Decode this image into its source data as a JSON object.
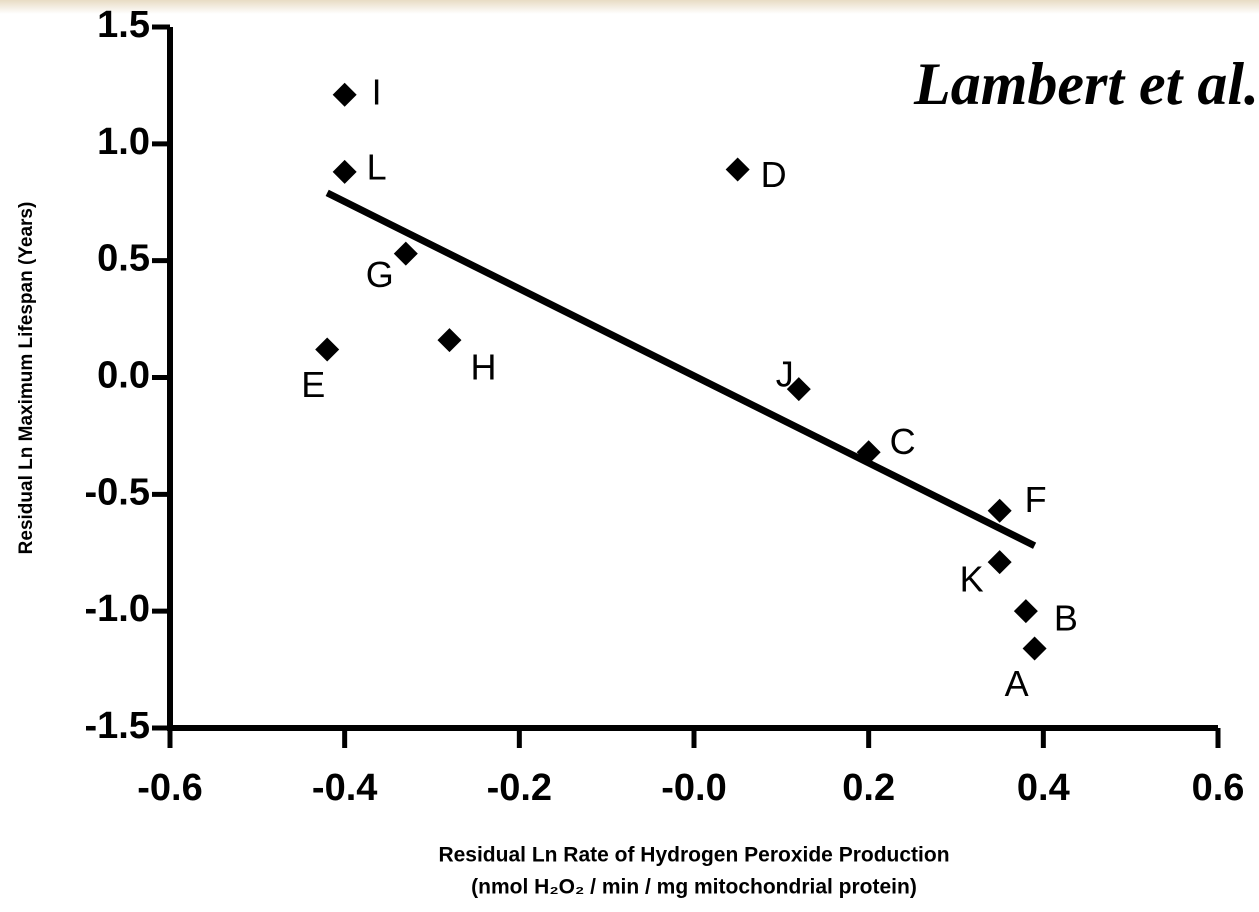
{
  "chart_data": {
    "type": "scatter",
    "annotation": "Lambert et al.",
    "x_label": [
      "Residual Ln Rate of Hydrogen Peroxide Production",
      "(nmol H₂O₂ / min / mg mitochondrial protein)"
    ],
    "y_label": "Residual Ln Maximum Lifespan  (Years)",
    "labels": [
      "I",
      "L",
      "D",
      "G",
      "E",
      "H",
      "J",
      "C",
      "F",
      "K",
      "B",
      "A"
    ],
    "x": [
      -0.4,
      -0.4,
      0.05,
      -0.33,
      -0.42,
      -0.28,
      0.12,
      0.2,
      0.35,
      0.35,
      0.38,
      0.39
    ],
    "y": [
      1.21,
      0.88,
      0.89,
      0.53,
      0.12,
      0.16,
      -0.05,
      -0.32,
      -0.57,
      -0.79,
      -1.0,
      -1.16
    ],
    "color": "#000000",
    "trendline": {
      "x": [
        -0.42,
        0.39
      ],
      "y": [
        0.79,
        -0.72
      ]
    },
    "xlim": [
      -0.6,
      0.6
    ],
    "ylim": [
      -1.5,
      1.5
    ],
    "xticks": [
      -0.6,
      -0.4,
      -0.2,
      {
        "value": 0,
        "label": "-0.0"
      },
      0.2,
      0.4,
      0.6
    ],
    "yticks": [
      -1.5,
      {
        "value": -1,
        "label": "-1.0"
      },
      -0.5,
      {
        "value": 0,
        "label": "0.0"
      },
      0.5,
      {
        "value": 1,
        "label": "1.0"
      },
      1.5
    ]
  }
}
